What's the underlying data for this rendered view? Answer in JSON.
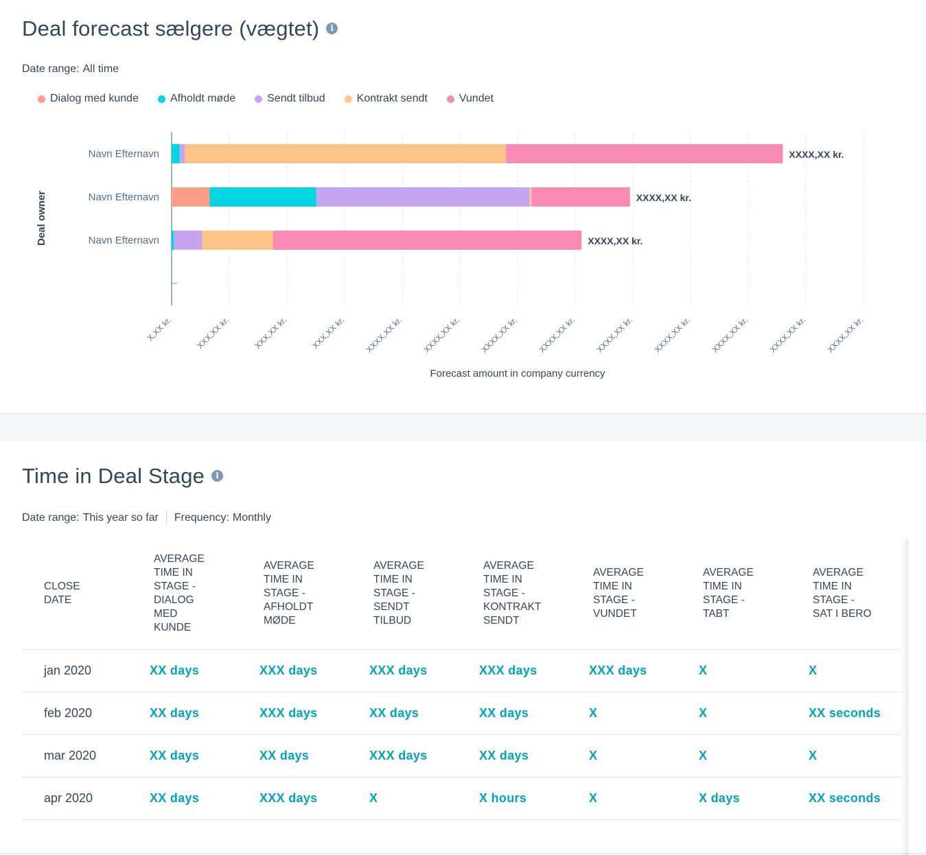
{
  "forecast": {
    "title": "Deal forecast sælgere (vægtet)",
    "info_icon": "info-icon",
    "date_range_label": "Date range:",
    "date_range_value": "All time",
    "legend": [
      {
        "label": "Dialog med kunde",
        "color": "#ff9e87"
      },
      {
        "label": "Afholdt møde",
        "color": "#00d6e2"
      },
      {
        "label": "Sendt tilbud",
        "color": "#c4a6f0"
      },
      {
        "label": "Kontrakt sendt",
        "color": "#ffc588"
      },
      {
        "label": "Vundet",
        "color": "#f98bb2"
      }
    ],
    "chart_data": {
      "type": "bar",
      "orientation": "horizontal",
      "stacked": true,
      "ylabel": "Deal owner",
      "xlabel": "Forecast amount in company currency",
      "categories": [
        "Navn Efternavn",
        "Navn Efternavn",
        "Navn Efternavn"
      ],
      "series": [
        {
          "name": "Dialog med kunde",
          "values": [
            0,
            6.6,
            0
          ]
        },
        {
          "name": "Afholdt møde",
          "values": [
            1.4,
            18.5,
            0.4
          ]
        },
        {
          "name": "Sendt tilbud",
          "values": [
            0.9,
            37.0,
            4.9
          ]
        },
        {
          "name": "Kontrakt sendt",
          "values": [
            55.7,
            0.3,
            12.3
          ]
        },
        {
          "name": "Vundet",
          "values": [
            48.0,
            17.1,
            53.5
          ]
        }
      ],
      "total_labels": [
        "XXXX,XX kr.",
        "XXXX,XX kr.",
        "XXXX,XX kr."
      ],
      "x_ticks": [
        "X,XX kr.",
        "XXX,XX kr.",
        "XXX,XX kr.",
        "XXX,XX kr.",
        "XXXX,XX kr.",
        "XXXX,XX kr.",
        "XXXX,XX kr.",
        "XXXX,XX kr.",
        "XXXX,XX kr.",
        "XXXX,XX kr.",
        "XXXX,XX kr.",
        "XXXX,XX kr.",
        "XXXX,XX kr."
      ],
      "x_tick_values": [
        0,
        10,
        20,
        30,
        40,
        50,
        60,
        70,
        80,
        90,
        100,
        110,
        120
      ],
      "xlim": [
        0,
        120
      ],
      "grid": true
    }
  },
  "time_in_stage": {
    "title": "Time in Deal Stage",
    "info_icon": "info-icon",
    "date_range_label": "Date range:",
    "date_range_value": "This year so far",
    "frequency_label": "Frequency:",
    "frequency_value": "Monthly",
    "columns": [
      "CLOSE DATE",
      "AVERAGE TIME IN STAGE - DIALOG MED KUNDE",
      "AVERAGE TIME IN STAGE - AFHOLDT MØDE",
      "AVERAGE TIME IN STAGE - SENDT TILBUD",
      "AVERAGE TIME IN STAGE - KONTRAKT SENDT",
      "AVERAGE TIME IN STAGE - VUNDET",
      "AVERAGE TIME IN STAGE - TABT",
      "AVERAGE TIME IN STAGE - SAT I BERO"
    ],
    "rows": [
      [
        "jan 2020",
        "XX days",
        "XXX days",
        "XXX days",
        "XXX days",
        "XXX days",
        "X",
        "X"
      ],
      [
        "feb 2020",
        "XX days",
        "XXX days",
        "XX days",
        "XX days",
        "X",
        "X",
        "XX seconds"
      ],
      [
        "mar 2020",
        "XX days",
        "XX days",
        "XXX days",
        "XX days",
        "X",
        "X",
        "X"
      ],
      [
        "apr 2020",
        "XX days",
        "XXX days",
        "X",
        "X hours",
        "X",
        "X days",
        "XX seconds"
      ]
    ]
  }
}
